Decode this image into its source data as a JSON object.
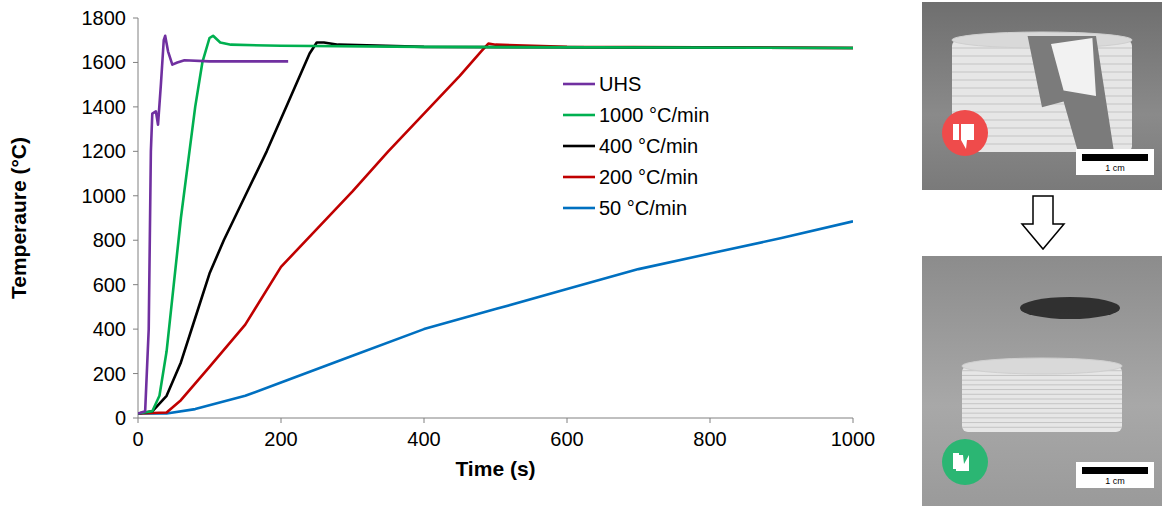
{
  "chart_data": {
    "type": "line",
    "x_label": "Time (s)",
    "y_label": "Temperaure (°C)",
    "xlim": [
      0,
      1000
    ],
    "xticks": [
      0,
      200,
      400,
      600,
      800,
      1000
    ],
    "ylim": [
      0,
      1800
    ],
    "yticks": [
      0,
      200,
      400,
      600,
      800,
      1000,
      1200,
      1400,
      1600,
      1800
    ],
    "grid": false,
    "legend": "upper right",
    "series": [
      {
        "name": "UHS",
        "color": "#7030a0",
        "x": [
          0,
          10,
          15,
          18,
          20,
          25,
          28,
          32,
          36,
          38,
          42,
          48,
          55,
          65,
          100,
          150,
          210
        ],
        "values": [
          20,
          30,
          400,
          1200,
          1370,
          1380,
          1320,
          1500,
          1700,
          1720,
          1650,
          1590,
          1600,
          1610,
          1605,
          1605,
          1605
        ]
      },
      {
        "name": "1000 °C/min",
        "color": "#00b050",
        "x": [
          0,
          20,
          30,
          40,
          50,
          60,
          70,
          80,
          90,
          100,
          105,
          115,
          130,
          200,
          400,
          1000
        ],
        "values": [
          20,
          30,
          100,
          300,
          600,
          900,
          1150,
          1400,
          1600,
          1710,
          1720,
          1690,
          1680,
          1675,
          1670,
          1665
        ]
      },
      {
        "name": "400 °C/min",
        "color": "#000000",
        "x": [
          0,
          20,
          40,
          60,
          80,
          100,
          120,
          150,
          180,
          210,
          240,
          250,
          260,
          280,
          400,
          1000
        ],
        "values": [
          20,
          30,
          100,
          250,
          450,
          650,
          800,
          1000,
          1200,
          1420,
          1640,
          1690,
          1690,
          1680,
          1670,
          1665
        ]
      },
      {
        "name": "200 °C/min",
        "color": "#c00000",
        "x": [
          0,
          40,
          60,
          100,
          150,
          200,
          250,
          300,
          350,
          400,
          450,
          480,
          490,
          500,
          600,
          1000
        ],
        "values": [
          20,
          25,
          80,
          230,
          420,
          680,
          850,
          1020,
          1200,
          1370,
          1540,
          1650,
          1685,
          1680,
          1670,
          1665
        ]
      },
      {
        "name": "50 °C/min",
        "color": "#0070c0",
        "x": [
          0,
          40,
          80,
          150,
          200,
          300,
          400,
          500,
          600,
          700,
          800,
          900,
          1000
        ],
        "values": [
          20,
          20,
          40,
          100,
          160,
          280,
          400,
          490,
          580,
          670,
          740,
          810,
          885
        ]
      }
    ]
  },
  "photos": [
    {
      "scale_label": "1 cm"
    },
    {
      "scale_label": "1 cm"
    }
  ]
}
